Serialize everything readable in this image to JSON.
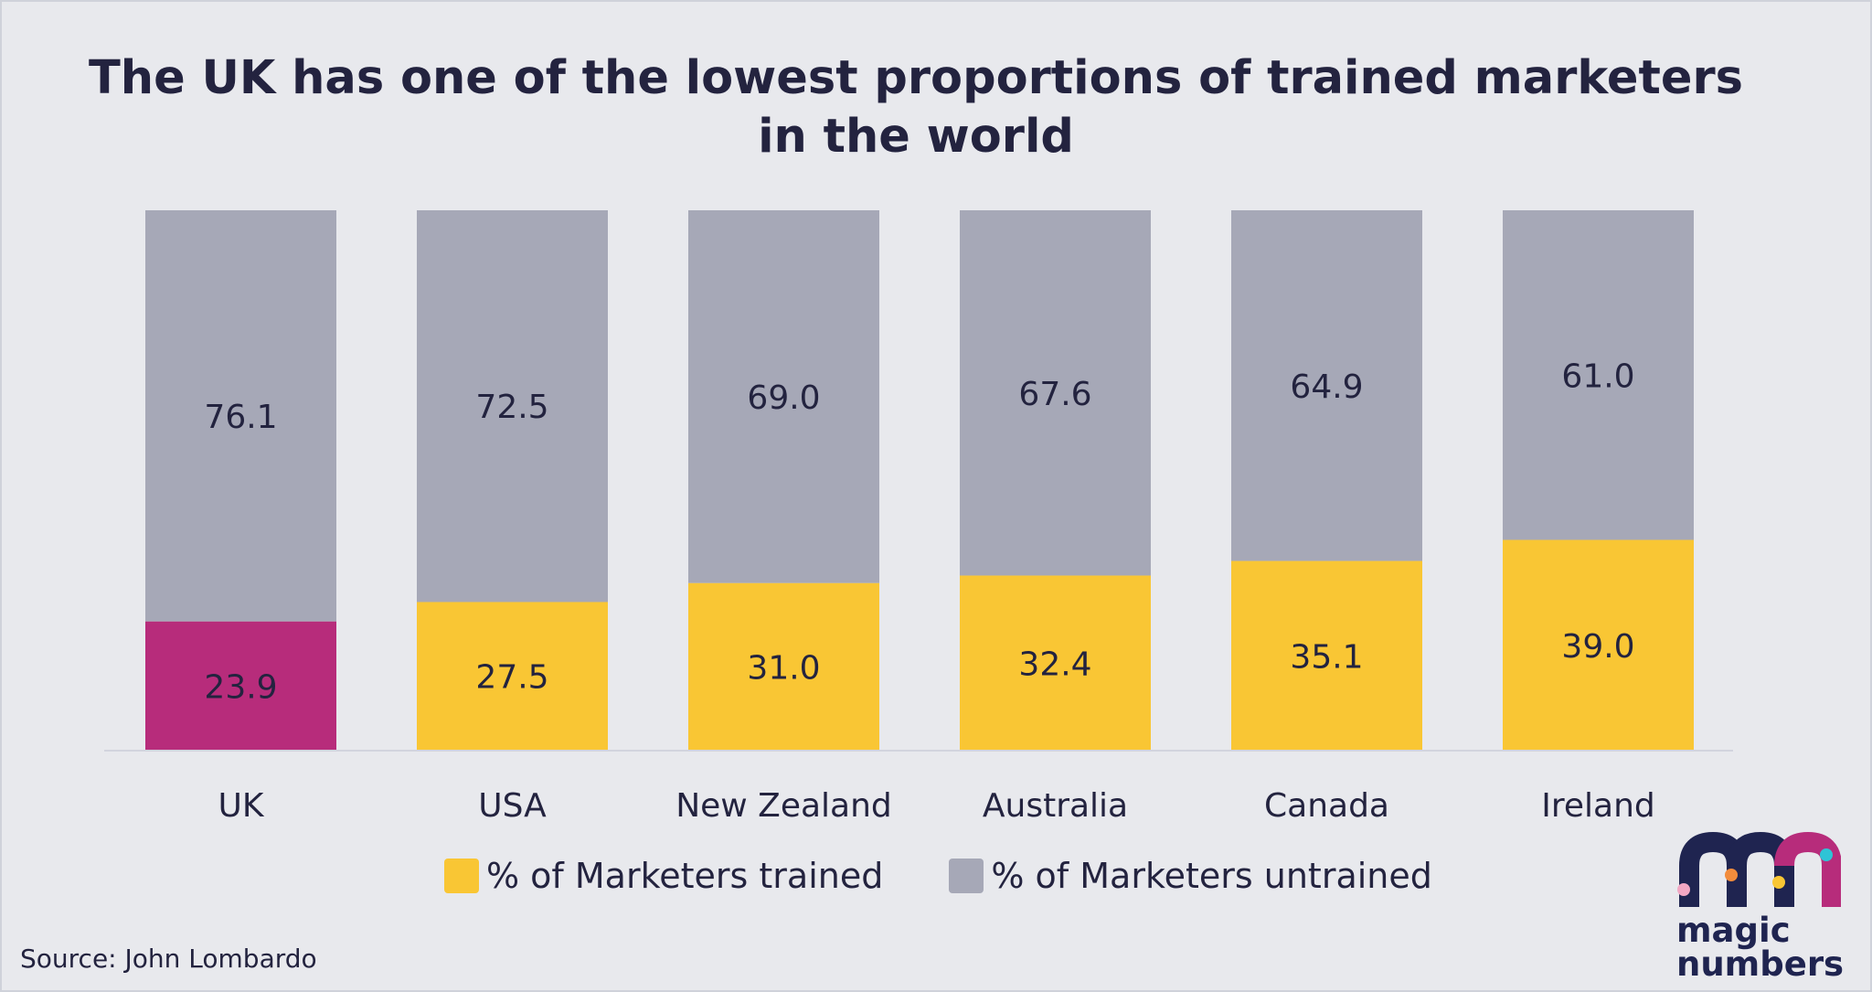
{
  "title": {
    "line1": "The UK has one of the lowest proportions of trained marketers",
    "line2": "in the world"
  },
  "colors": {
    "trained": "#f9c634",
    "untrained": "#a6a8b7",
    "highlight": "#b72c7b",
    "text": "#23233f",
    "background": "#e8e9ed"
  },
  "chart_data": {
    "type": "bar",
    "stacked": true,
    "categories": [
      "UK",
      "USA",
      "New Zealand",
      "Australia",
      "Canada",
      "Ireland"
    ],
    "series": [
      {
        "name": "% of Marketers trained",
        "values": [
          23.9,
          27.5,
          31.0,
          32.4,
          35.1,
          39.0
        ]
      },
      {
        "name": "% of Marketers untrained",
        "values": [
          76.1,
          72.5,
          69.0,
          67.6,
          64.9,
          61.0
        ]
      }
    ],
    "labels": {
      "trained": [
        "23.9",
        "27.5",
        "31.0",
        "32.4",
        "35.1",
        "39.0"
      ],
      "untrained": [
        "76.1",
        "72.5",
        "69.0",
        "67.6",
        "64.9",
        "61.0"
      ]
    },
    "highlight_category": "UK",
    "ylim": [
      0,
      100
    ],
    "legend_position": "bottom"
  },
  "legend": {
    "trained": "% of Marketers trained",
    "untrained": "% of Marketers untrained"
  },
  "source": "Source: John Lombardo",
  "logo": {
    "line1": "magic",
    "line2": "numbers"
  }
}
